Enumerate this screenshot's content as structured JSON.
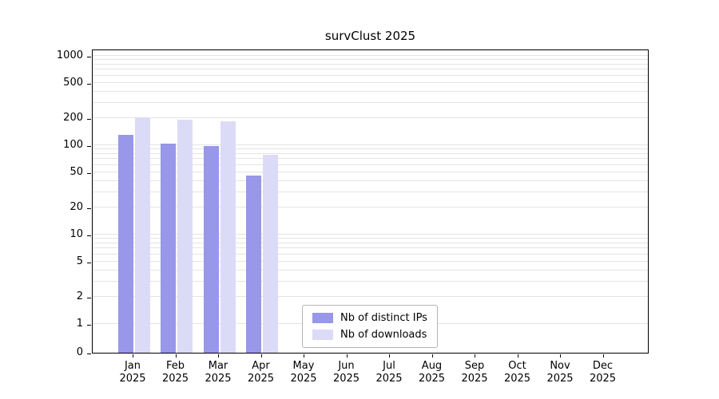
{
  "title": "survClust 2025",
  "chart_data": {
    "type": "bar",
    "title": "survClust 2025",
    "xlabel": "",
    "ylabel": "",
    "categories": [
      "Jan 2025",
      "Feb 2025",
      "Mar 2025",
      "Apr 2025",
      "May 2025",
      "Jun 2025",
      "Jul 2025",
      "Aug 2025",
      "Sep 2025",
      "Oct 2025",
      "Nov 2025",
      "Dec 2025"
    ],
    "x_tick_months": [
      "Jan",
      "Feb",
      "Mar",
      "Apr",
      "May",
      "Jun",
      "Jul",
      "Aug",
      "Sep",
      "Oct",
      "Nov",
      "Dec"
    ],
    "x_tick_year": "2025",
    "series": [
      {
        "name": "Nb of distinct IPs",
        "color": "#9897ea",
        "values": [
          130,
          105,
          97,
          46,
          0,
          0,
          0,
          0,
          0,
          0,
          0,
          0
        ]
      },
      {
        "name": "Nb of downloads",
        "color": "#dcdbf7",
        "values": [
          205,
          192,
          186,
          78,
          0,
          0,
          0,
          0,
          0,
          0,
          0,
          0
        ]
      }
    ],
    "y_ticks": [
      0,
      1,
      2,
      5,
      10,
      20,
      50,
      100,
      200,
      500,
      1000
    ],
    "y_scale": "log (0 pinned at baseline)",
    "ylim": [
      0,
      1300
    ],
    "grid": "horizontal log-minor gridlines",
    "legend_position": "inside-bottom-center",
    "background_color": "#ffffff",
    "gridline_color": "#e4e4e4"
  }
}
